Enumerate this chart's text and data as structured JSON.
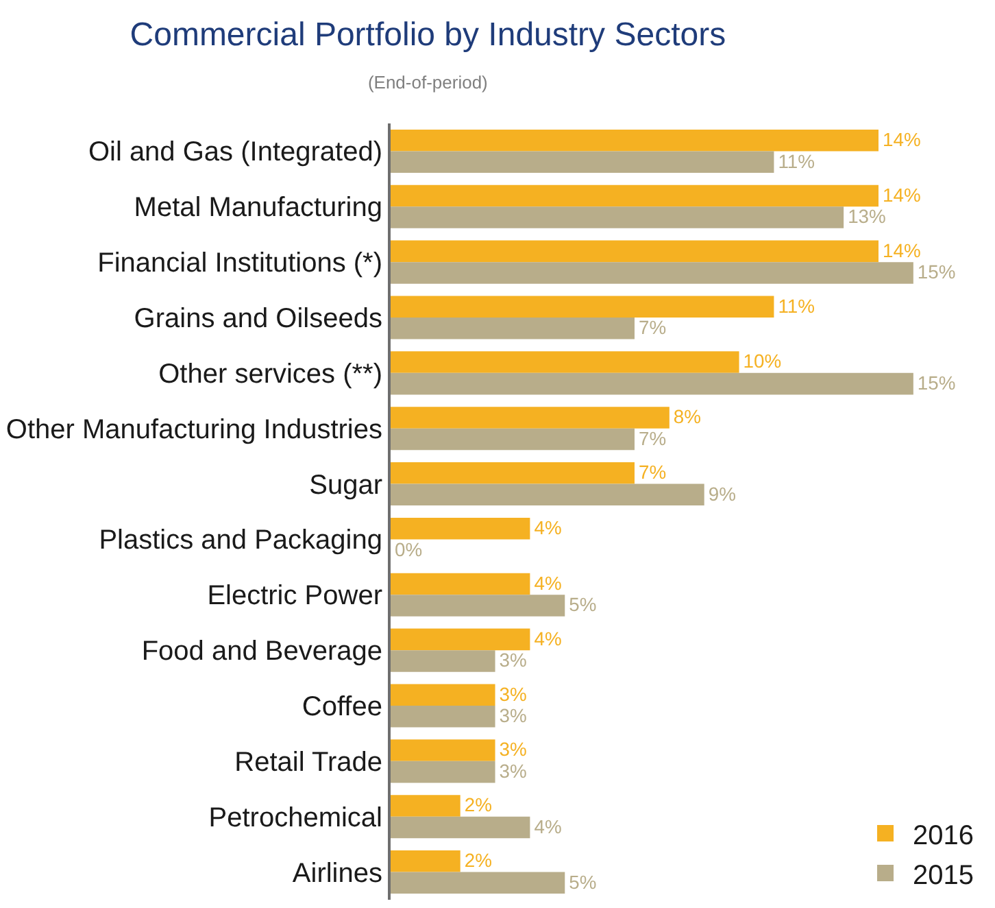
{
  "chart_data": {
    "type": "bar",
    "orientation": "horizontal",
    "title": "Commercial Portfolio by Industry Sectors",
    "subtitle": "(End-of-period)",
    "categories": [
      "Oil and Gas (Integrated)",
      "Metal Manufacturing",
      "Financial Institutions (*)",
      "Grains and Oilseeds",
      "Other services (**)",
      "Other Manufacturing Industries",
      "Sugar",
      "Plastics and Packaging",
      "Electric Power",
      "Food and Beverage",
      "Coffee",
      "Retail Trade",
      "Petrochemical",
      "Airlines"
    ],
    "series": [
      {
        "name": "2016",
        "color": "#f5b122",
        "values": [
          14,
          14,
          14,
          11,
          10,
          8,
          7,
          4,
          4,
          4,
          3,
          3,
          2,
          2
        ],
        "value_labels": [
          "14%",
          "14%",
          "14%",
          "11%",
          "10%",
          "8%",
          "7%",
          "4%",
          "4%",
          "4%",
          "3%",
          "3%",
          "2%",
          "2%"
        ]
      },
      {
        "name": "2015",
        "color": "#b8ad8a",
        "values": [
          11,
          13,
          15,
          7,
          15,
          7,
          9,
          0,
          5,
          3,
          3,
          3,
          4,
          5
        ],
        "value_labels": [
          "11%",
          "13%",
          "15%",
          "7%",
          "15%",
          "7%",
          "9%",
          "0%",
          "5%",
          "3%",
          "3%",
          "3%",
          "4%",
          "5%"
        ]
      }
    ],
    "legend": "bottom right"
  }
}
